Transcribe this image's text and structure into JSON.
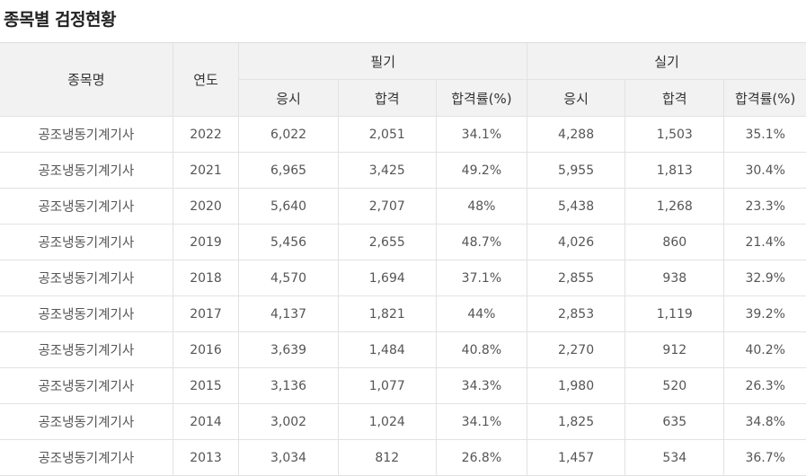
{
  "page": {
    "title": "종목별 검정현황"
  },
  "table": {
    "headers": {
      "subject": "종목명",
      "year": "연도",
      "written": "필기",
      "practical": "실기",
      "applicants": "응시",
      "passed": "합격",
      "pass_rate": "합격률(%)"
    },
    "rows": [
      [
        "공조냉동기계기사",
        "2022",
        "6,022",
        "2,051",
        "34.1%",
        "4,288",
        "1,503",
        "35.1%"
      ],
      [
        "공조냉동기계기사",
        "2021",
        "6,965",
        "3,425",
        "49.2%",
        "5,955",
        "1,813",
        "30.4%"
      ],
      [
        "공조냉동기계기사",
        "2020",
        "5,640",
        "2,707",
        "48%",
        "5,438",
        "1,268",
        "23.3%"
      ],
      [
        "공조냉동기계기사",
        "2019",
        "5,456",
        "2,655",
        "48.7%",
        "4,026",
        "860",
        "21.4%"
      ],
      [
        "공조냉동기계기사",
        "2018",
        "4,570",
        "1,694",
        "37.1%",
        "2,855",
        "938",
        "32.9%"
      ],
      [
        "공조냉동기계기사",
        "2017",
        "4,137",
        "1,821",
        "44%",
        "2,853",
        "1,119",
        "39.2%"
      ],
      [
        "공조냉동기계기사",
        "2016",
        "3,639",
        "1,484",
        "40.8%",
        "2,270",
        "912",
        "40.2%"
      ],
      [
        "공조냉동기계기사",
        "2015",
        "3,136",
        "1,077",
        "34.3%",
        "1,980",
        "520",
        "26.3%"
      ],
      [
        "공조냉동기계기사",
        "2014",
        "3,002",
        "1,024",
        "34.1%",
        "1,825",
        "635",
        "34.8%"
      ],
      [
        "공조냉동기계기사",
        "2013",
        "3,034",
        "812",
        "26.8%",
        "1,457",
        "534",
        "36.7%"
      ]
    ]
  }
}
